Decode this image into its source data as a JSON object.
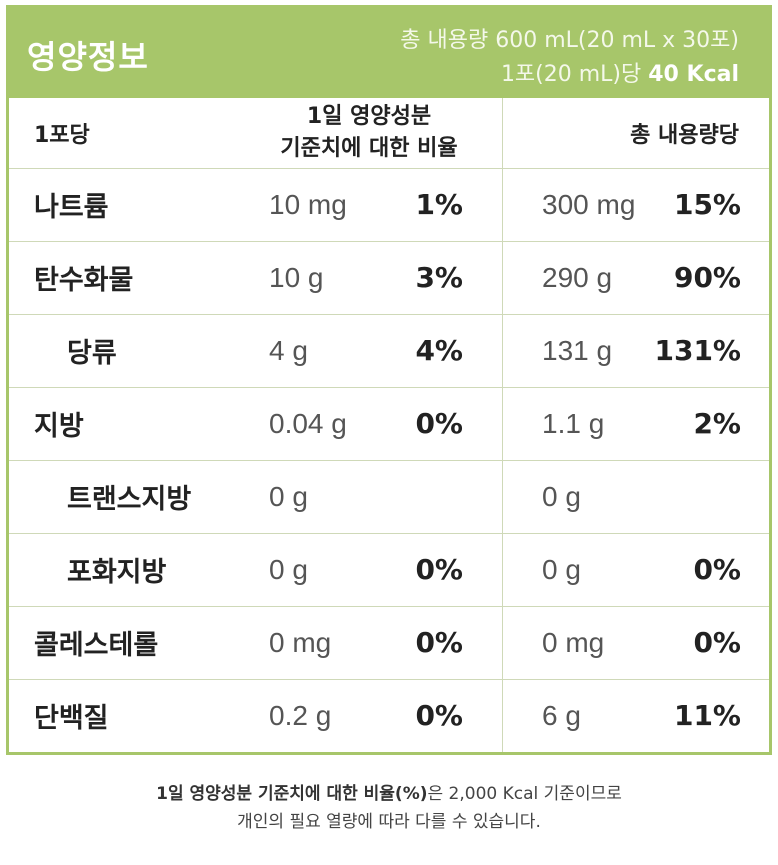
{
  "header": {
    "title": "영양정보",
    "total_content": "총 내용량 600 mL(20 mL x 30포)",
    "per_serving_prefix": "1포(20 mL)당 ",
    "per_serving_kcal": "40 Kcal"
  },
  "columns": {
    "serving": "1포당",
    "daily_line1": "1일 영양성분",
    "daily_line2": "기준치에 대한 비율",
    "total": "총 내용량당"
  },
  "rows": [
    {
      "name": "나트륨",
      "serving_amount": "10 mg",
      "serving_pct": "1%",
      "total_amount": "300 mg",
      "total_pct": "15%",
      "indent": false
    },
    {
      "name": "탄수화물",
      "serving_amount": "10 g",
      "serving_pct": "3%",
      "total_amount": "290 g",
      "total_pct": "90%",
      "indent": false
    },
    {
      "name": "당류",
      "serving_amount": "4 g",
      "serving_pct": "4%",
      "total_amount": "131 g",
      "total_pct": "131%",
      "indent": true
    },
    {
      "name": "지방",
      "serving_amount": "0.04 g",
      "serving_pct": "0%",
      "total_amount": "1.1 g",
      "total_pct": "2%",
      "indent": false
    },
    {
      "name": "트랜스지방",
      "serving_amount": "0 g",
      "serving_pct": "",
      "total_amount": "0 g",
      "total_pct": "",
      "indent": true
    },
    {
      "name": "포화지방",
      "serving_amount": "0 g",
      "serving_pct": "0%",
      "total_amount": "0 g",
      "total_pct": "0%",
      "indent": true
    },
    {
      "name": "콜레스테롤",
      "serving_amount": "0 mg",
      "serving_pct": "0%",
      "total_amount": "0 mg",
      "total_pct": "0%",
      "indent": false
    },
    {
      "name": "단백질",
      "serving_amount": "0.2 g",
      "serving_pct": "0%",
      "total_amount": "6 g",
      "total_pct": "11%",
      "indent": false
    }
  ],
  "footnote": {
    "line1_bold": "1일 영양성분 기준치에 대한 비율(%)",
    "line1_rest": "은 2,000 Kcal 기준이므로",
    "line2": "개인의 필요 열량에 따라 다를 수 있습니다."
  },
  "colors": {
    "accent": "#a7c66a",
    "divider": "#cfd9b8"
  }
}
